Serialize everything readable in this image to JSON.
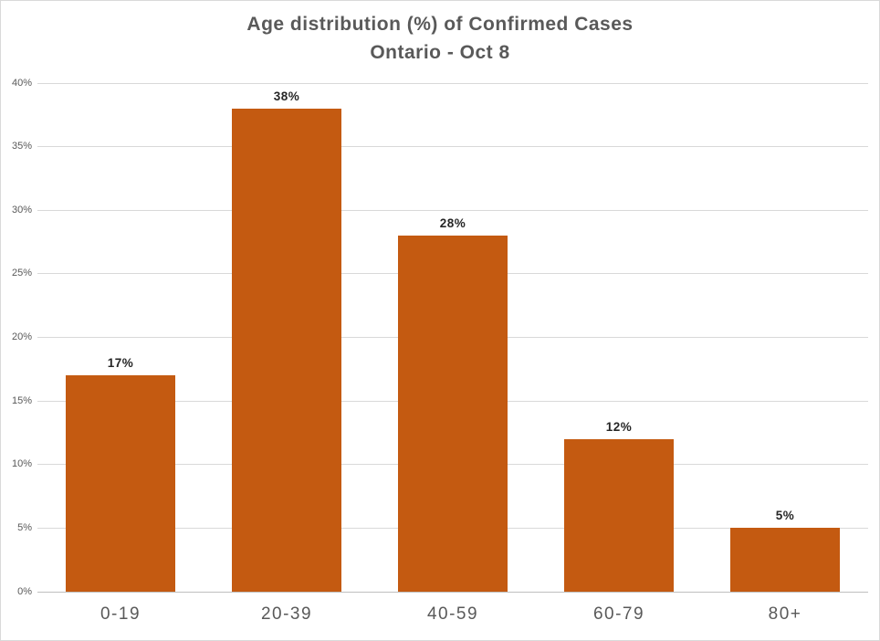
{
  "chart_data": {
    "type": "bar",
    "title": "Age distribution (%) of Confirmed Cases",
    "subtitle": "Ontario - Oct 8",
    "categories": [
      "0-19",
      "20-39",
      "40-59",
      "60-79",
      "80+"
    ],
    "values": [
      17,
      38,
      28,
      12,
      5
    ],
    "data_labels": [
      "17%",
      "38%",
      "28%",
      "12%",
      "5%"
    ],
    "xlabel": "",
    "ylabel": "",
    "ylim": [
      0,
      40
    ],
    "ytick_interval": 5,
    "ytick_labels": [
      "0%",
      "5%",
      "10%",
      "15%",
      "20%",
      "25%",
      "30%",
      "35%",
      "40%"
    ],
    "grid": true,
    "legend": false
  },
  "colors": {
    "bar": "#c45a11",
    "gridline": "#d9d9d9",
    "axis_line": "#bfbfbf",
    "title_text": "#595959",
    "tick_text": "#595959",
    "data_label_text": "#262626",
    "background": "#ffffff",
    "border": "#d9d9d9"
  }
}
